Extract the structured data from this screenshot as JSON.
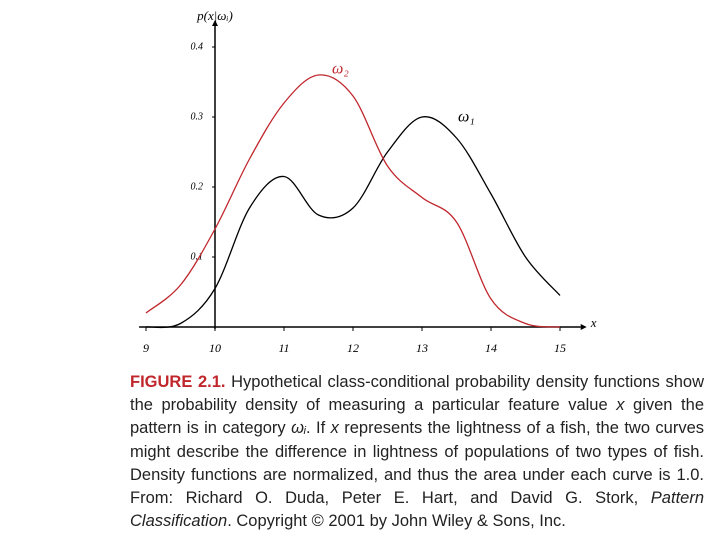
{
  "chart_data": {
    "type": "line",
    "y_axis_label": "p(x|ωᵢ)",
    "x_axis_label": "x",
    "x": [
      9,
      9.5,
      10,
      10.5,
      11,
      11.5,
      12,
      12.5,
      13,
      13.5,
      14,
      14.5,
      15
    ],
    "series": [
      {
        "name": "ω₁",
        "color": "#000000",
        "values": [
          0.0,
          0.005,
          0.055,
          0.17,
          0.215,
          0.16,
          0.17,
          0.25,
          0.3,
          0.27,
          0.19,
          0.1,
          0.045
        ]
      },
      {
        "name": "ω₂",
        "color": "#c0272d",
        "values": [
          0.02,
          0.06,
          0.14,
          0.24,
          0.32,
          0.36,
          0.33,
          0.23,
          0.185,
          0.15,
          0.04,
          0.005,
          0.0
        ]
      }
    ],
    "xlim": [
      8.9,
      15.3
    ],
    "ylim": [
      0,
      0.43
    ],
    "xticks": [
      9,
      10,
      11,
      12,
      13,
      14,
      15
    ],
    "yticks": [
      0.1,
      0.2,
      0.3,
      0.4
    ],
    "y_axis_at": 10
  },
  "caption": {
    "label": "FIGURE 2.1.",
    "segments": [
      {
        "text": " Hypothetical class-conditional probability density functions show the probability density of measuring a particular feature value ",
        "italic": false
      },
      {
        "text": "x",
        "italic": true
      },
      {
        "text": " given the pattern is in category ",
        "italic": false
      },
      {
        "text": "ωᵢ",
        "italic": true
      },
      {
        "text": ". If ",
        "italic": false
      },
      {
        "text": "x",
        "italic": true
      },
      {
        "text": " represents the lightness of a fish, the two curves might describe the difference in lightness of populations of two types of fish. Density functions are normalized, and thus the area under each curve is 1.0. From: Richard O. Duda, Peter E. Hart, and David G. Stork, ",
        "italic": false
      },
      {
        "text": "Pattern Classification",
        "italic": true
      },
      {
        "text": ". Copyright © 2001 by John Wiley & Sons, Inc.",
        "italic": false
      }
    ]
  }
}
